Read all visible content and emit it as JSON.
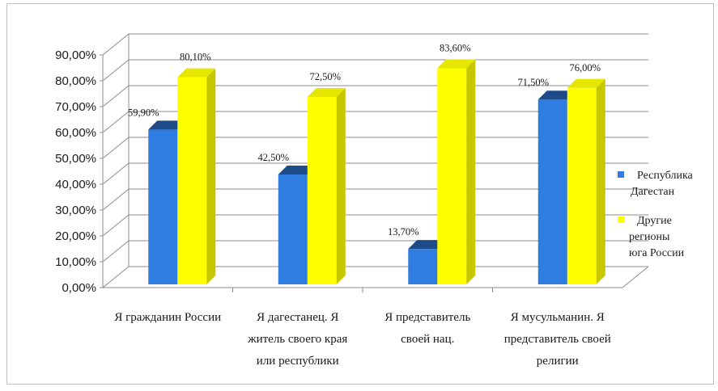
{
  "chart_data": {
    "type": "bar",
    "style": "3d-clustered-column",
    "categories": [
      [
        "Я гражданин России"
      ],
      [
        "Я дагестанец. Я",
        "житель своего края",
        "или республики"
      ],
      [
        "Я представитель",
        "своей нац."
      ],
      [
        "Я мусульманин. Я",
        "представитель своей",
        "религии"
      ]
    ],
    "series": [
      {
        "name": "Республика Дагестан",
        "legend_lines": [
          "Республика",
          "Дагестан"
        ],
        "color": "#2f7de1",
        "values": [
          59.9,
          42.5,
          13.7,
          71.5
        ],
        "labels": [
          "59,90%",
          "42,50%",
          "13,70%",
          "71,50%"
        ]
      },
      {
        "name": "Другие регионы юга России",
        "legend_lines": [
          "Другие",
          "регионы",
          "юга   России"
        ],
        "color": "#ffff00",
        "values": [
          80.1,
          72.5,
          83.6,
          76.0
        ],
        "labels": [
          "80,10%",
          "72,50%",
          "83,60%",
          "76,00%"
        ]
      }
    ],
    "y_ticks": [
      "0,00%",
      "10,00%",
      "20,00%",
      "30,00%",
      "40,00%",
      "50,00%",
      "60,00%",
      "70,00%",
      "80,00%",
      "90,00%"
    ],
    "ylim": [
      0,
      90
    ],
    "grid": true,
    "legend_position": "right"
  }
}
